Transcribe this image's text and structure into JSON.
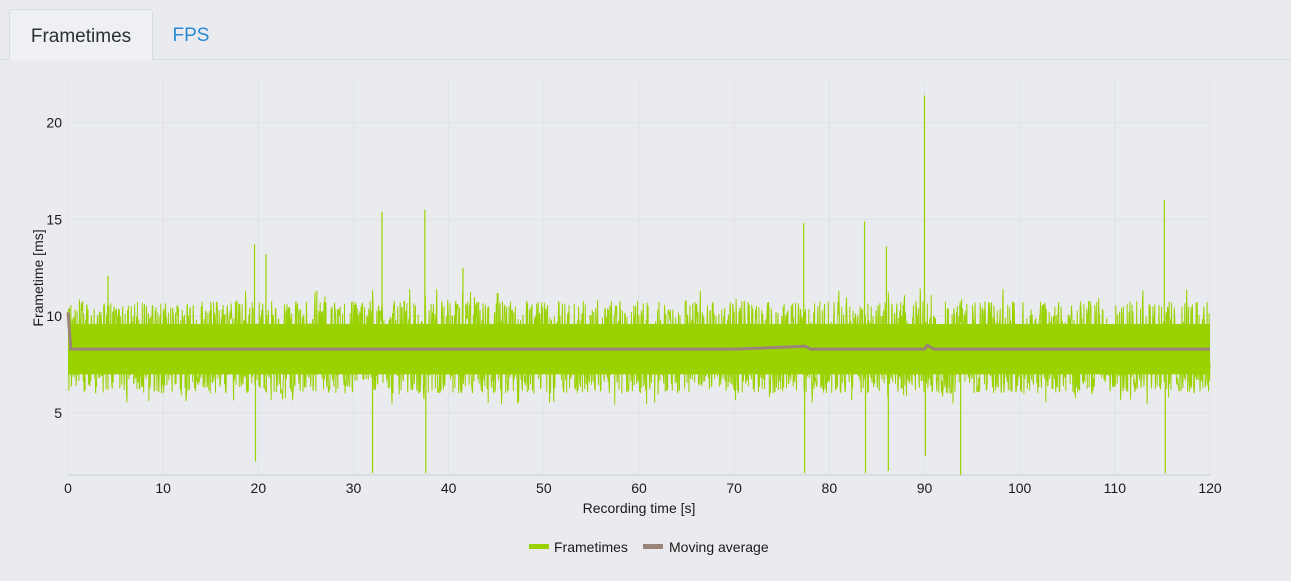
{
  "tabs": [
    {
      "label": "Frametimes",
      "active": true
    },
    {
      "label": "FPS",
      "active": false
    }
  ],
  "colors": {
    "frametimes": "#9ad200",
    "moving_average": "#9a8478",
    "grid": "#dfe2e6",
    "tab_link": "#2a8ad4"
  },
  "chart_data": {
    "type": "line",
    "title": "",
    "xlabel": "Recording time [s]",
    "ylabel": "Frametime [ms]",
    "xlim": [
      0,
      120
    ],
    "ylim": [
      1.8,
      22.2
    ],
    "x_ticks": [
      0,
      10,
      20,
      30,
      40,
      50,
      60,
      70,
      80,
      90,
      100,
      110,
      120
    ],
    "y_ticks": [
      5,
      10,
      15,
      20
    ],
    "grid": true,
    "legend_position": "bottom-center",
    "series": [
      {
        "name": "Frametimes",
        "style": "dense-noise-band",
        "baseline_ms": 8.3,
        "typical_range_ms": [
          6.0,
          10.8
        ],
        "spikes": [
          {
            "x": 0.1,
            "y": 10.4
          },
          {
            "x": 4.2,
            "y": 12.1
          },
          {
            "x": 19.6,
            "y": 13.7
          },
          {
            "x": 19.7,
            "y": 2.5
          },
          {
            "x": 20.8,
            "y": 13.2
          },
          {
            "x": 32.0,
            "y": 1.9
          },
          {
            "x": 33.0,
            "y": 15.4
          },
          {
            "x": 37.5,
            "y": 15.5
          },
          {
            "x": 37.6,
            "y": 1.9
          },
          {
            "x": 41.5,
            "y": 12.5
          },
          {
            "x": 77.3,
            "y": 14.8
          },
          {
            "x": 77.4,
            "y": 1.9
          },
          {
            "x": 83.7,
            "y": 14.9
          },
          {
            "x": 83.8,
            "y": 1.9
          },
          {
            "x": 86.0,
            "y": 13.6
          },
          {
            "x": 86.2,
            "y": 2.0
          },
          {
            "x": 90.0,
            "y": 21.4
          },
          {
            "x": 90.1,
            "y": 2.8
          },
          {
            "x": 93.8,
            "y": 1.8
          },
          {
            "x": 115.2,
            "y": 16.0
          },
          {
            "x": 115.3,
            "y": 1.9
          }
        ]
      },
      {
        "name": "Moving average",
        "x": [
          0,
          0.3,
          10,
          20,
          30,
          40,
          50,
          60,
          70,
          77.5,
          78,
          90,
          90.3,
          91,
          100,
          110,
          120
        ],
        "values": [
          10.2,
          8.3,
          8.3,
          8.3,
          8.3,
          8.3,
          8.3,
          8.3,
          8.3,
          8.45,
          8.3,
          8.3,
          8.5,
          8.3,
          8.3,
          8.3,
          8.3
        ]
      }
    ]
  }
}
